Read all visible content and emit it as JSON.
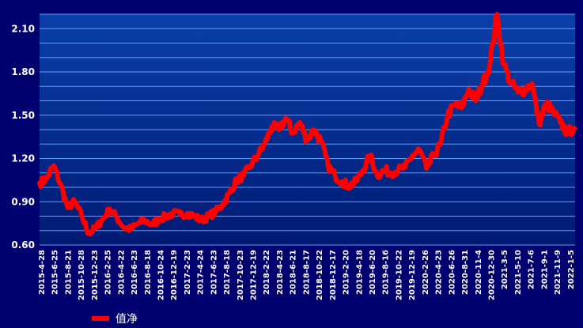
{
  "chart_data": {
    "type": "line",
    "title": "",
    "xlabel": "",
    "ylabel": "",
    "ylim": [
      0.6,
      2.2
    ],
    "y_ticks": [
      "0.60",
      "0.90",
      "1.20",
      "1.50",
      "1.80",
      "2.10"
    ],
    "grid": true,
    "legend_position": "bottom-left",
    "colors": {
      "background": "#00006e",
      "plot_top": "#0b3fa8",
      "plot_bottom": "#001a73",
      "grid": "#5aa0ff",
      "line": "#ff0000",
      "text": "#ffffff"
    },
    "x_tick_labels": [
      "2015-4-28",
      "2015-6-25",
      "2015-8-21",
      "2015-10-28",
      "2015-12-23",
      "2016-2-25",
      "2016-4-22",
      "2016-6-23",
      "2016-8-18",
      "2016-10-24",
      "2016-12-19",
      "2017-2-23",
      "2017-4-24",
      "2017-6-23",
      "2017-8-18",
      "2017-10-23",
      "2017-12-19",
      "2018-2-22",
      "2018-4-23",
      "2018-6-21",
      "2018-8-17",
      "2018-10-22",
      "2018-12-17",
      "2019-2-20",
      "2019-4-18",
      "2019-6-20",
      "2019-8-16",
      "2019-10-22",
      "2019-12-19",
      "2020-2-26",
      "2020-4-23",
      "2020-6-26",
      "2020-8-31",
      "2020-11-4",
      "2020-12-30",
      "2021-3-5",
      "2021-5-10",
      "2021-7-6",
      "2021-9-1",
      "2021-11-9",
      "2022-1-5"
    ],
    "series": [
      {
        "name": "值净",
        "values": [
          1.03,
          1.06,
          1.15,
          1.02,
          0.86,
          0.9,
          0.8,
          0.68,
          0.72,
          0.78,
          0.85,
          0.79,
          0.72,
          0.71,
          0.75,
          0.77,
          0.74,
          0.78,
          0.8,
          0.82,
          0.81,
          0.82,
          0.8,
          0.77,
          0.8,
          0.83,
          0.88,
          0.96,
          1.05,
          1.08,
          1.15,
          1.22,
          1.3,
          1.42,
          1.4,
          1.48,
          1.38,
          1.45,
          1.33,
          1.4,
          1.32,
          1.15,
          1.08,
          1.04,
          1.01,
          1.04,
          1.12,
          1.22,
          1.08,
          1.12,
          1.1,
          1.12,
          1.14,
          1.22,
          1.26,
          1.13,
          1.22,
          1.3,
          1.5,
          1.57,
          1.55,
          1.68,
          1.6,
          1.72,
          1.85,
          2.2,
          1.85,
          1.72,
          1.66,
          1.68,
          1.72,
          1.44,
          1.58,
          1.52,
          1.45,
          1.38,
          1.41
        ]
      }
    ]
  }
}
